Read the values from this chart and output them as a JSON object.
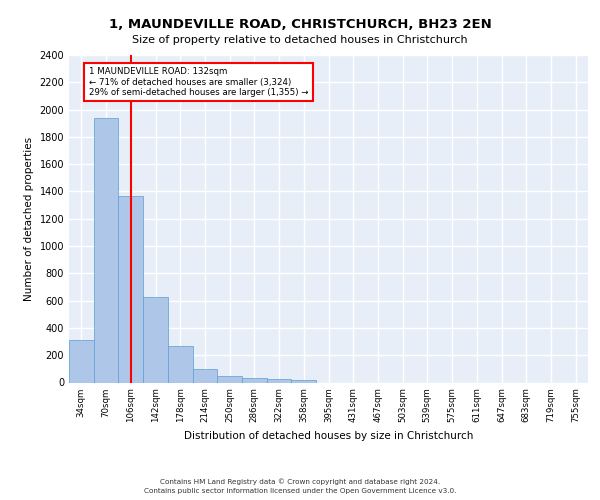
{
  "title": "1, MAUNDEVILLE ROAD, CHRISTCHURCH, BH23 2EN",
  "subtitle": "Size of property relative to detached houses in Christchurch",
  "xlabel": "Distribution of detached houses by size in Christchurch",
  "ylabel": "Number of detached properties",
  "bar_color": "#aec6e8",
  "bar_edge_color": "#5a9fd4",
  "bg_color": "#e8eef8",
  "grid_color": "white",
  "categories": [
    "34sqm",
    "70sqm",
    "106sqm",
    "142sqm",
    "178sqm",
    "214sqm",
    "250sqm",
    "286sqm",
    "322sqm",
    "358sqm",
    "395sqm",
    "431sqm",
    "467sqm",
    "503sqm",
    "539sqm",
    "575sqm",
    "611sqm",
    "647sqm",
    "683sqm",
    "719sqm",
    "755sqm"
  ],
  "values": [
    310,
    1940,
    1370,
    630,
    270,
    100,
    45,
    30,
    25,
    20,
    0,
    0,
    0,
    0,
    0,
    0,
    0,
    0,
    0,
    0,
    0
  ],
  "ylim": [
    0,
    2400
  ],
  "yticks": [
    0,
    200,
    400,
    600,
    800,
    1000,
    1200,
    1400,
    1600,
    1800,
    2000,
    2200,
    2400
  ],
  "vline_x": 2.0,
  "annotation_title": "1 MAUNDEVILLE ROAD: 132sqm",
  "annotation_line1": "← 71% of detached houses are smaller (3,324)",
  "annotation_line2": "29% of semi-detached houses are larger (1,355) →",
  "annotation_box_color": "white",
  "annotation_box_edgecolor": "red",
  "vline_color": "red",
  "footer1": "Contains HM Land Registry data © Crown copyright and database right 2024.",
  "footer2": "Contains public sector information licensed under the Open Government Licence v3.0."
}
